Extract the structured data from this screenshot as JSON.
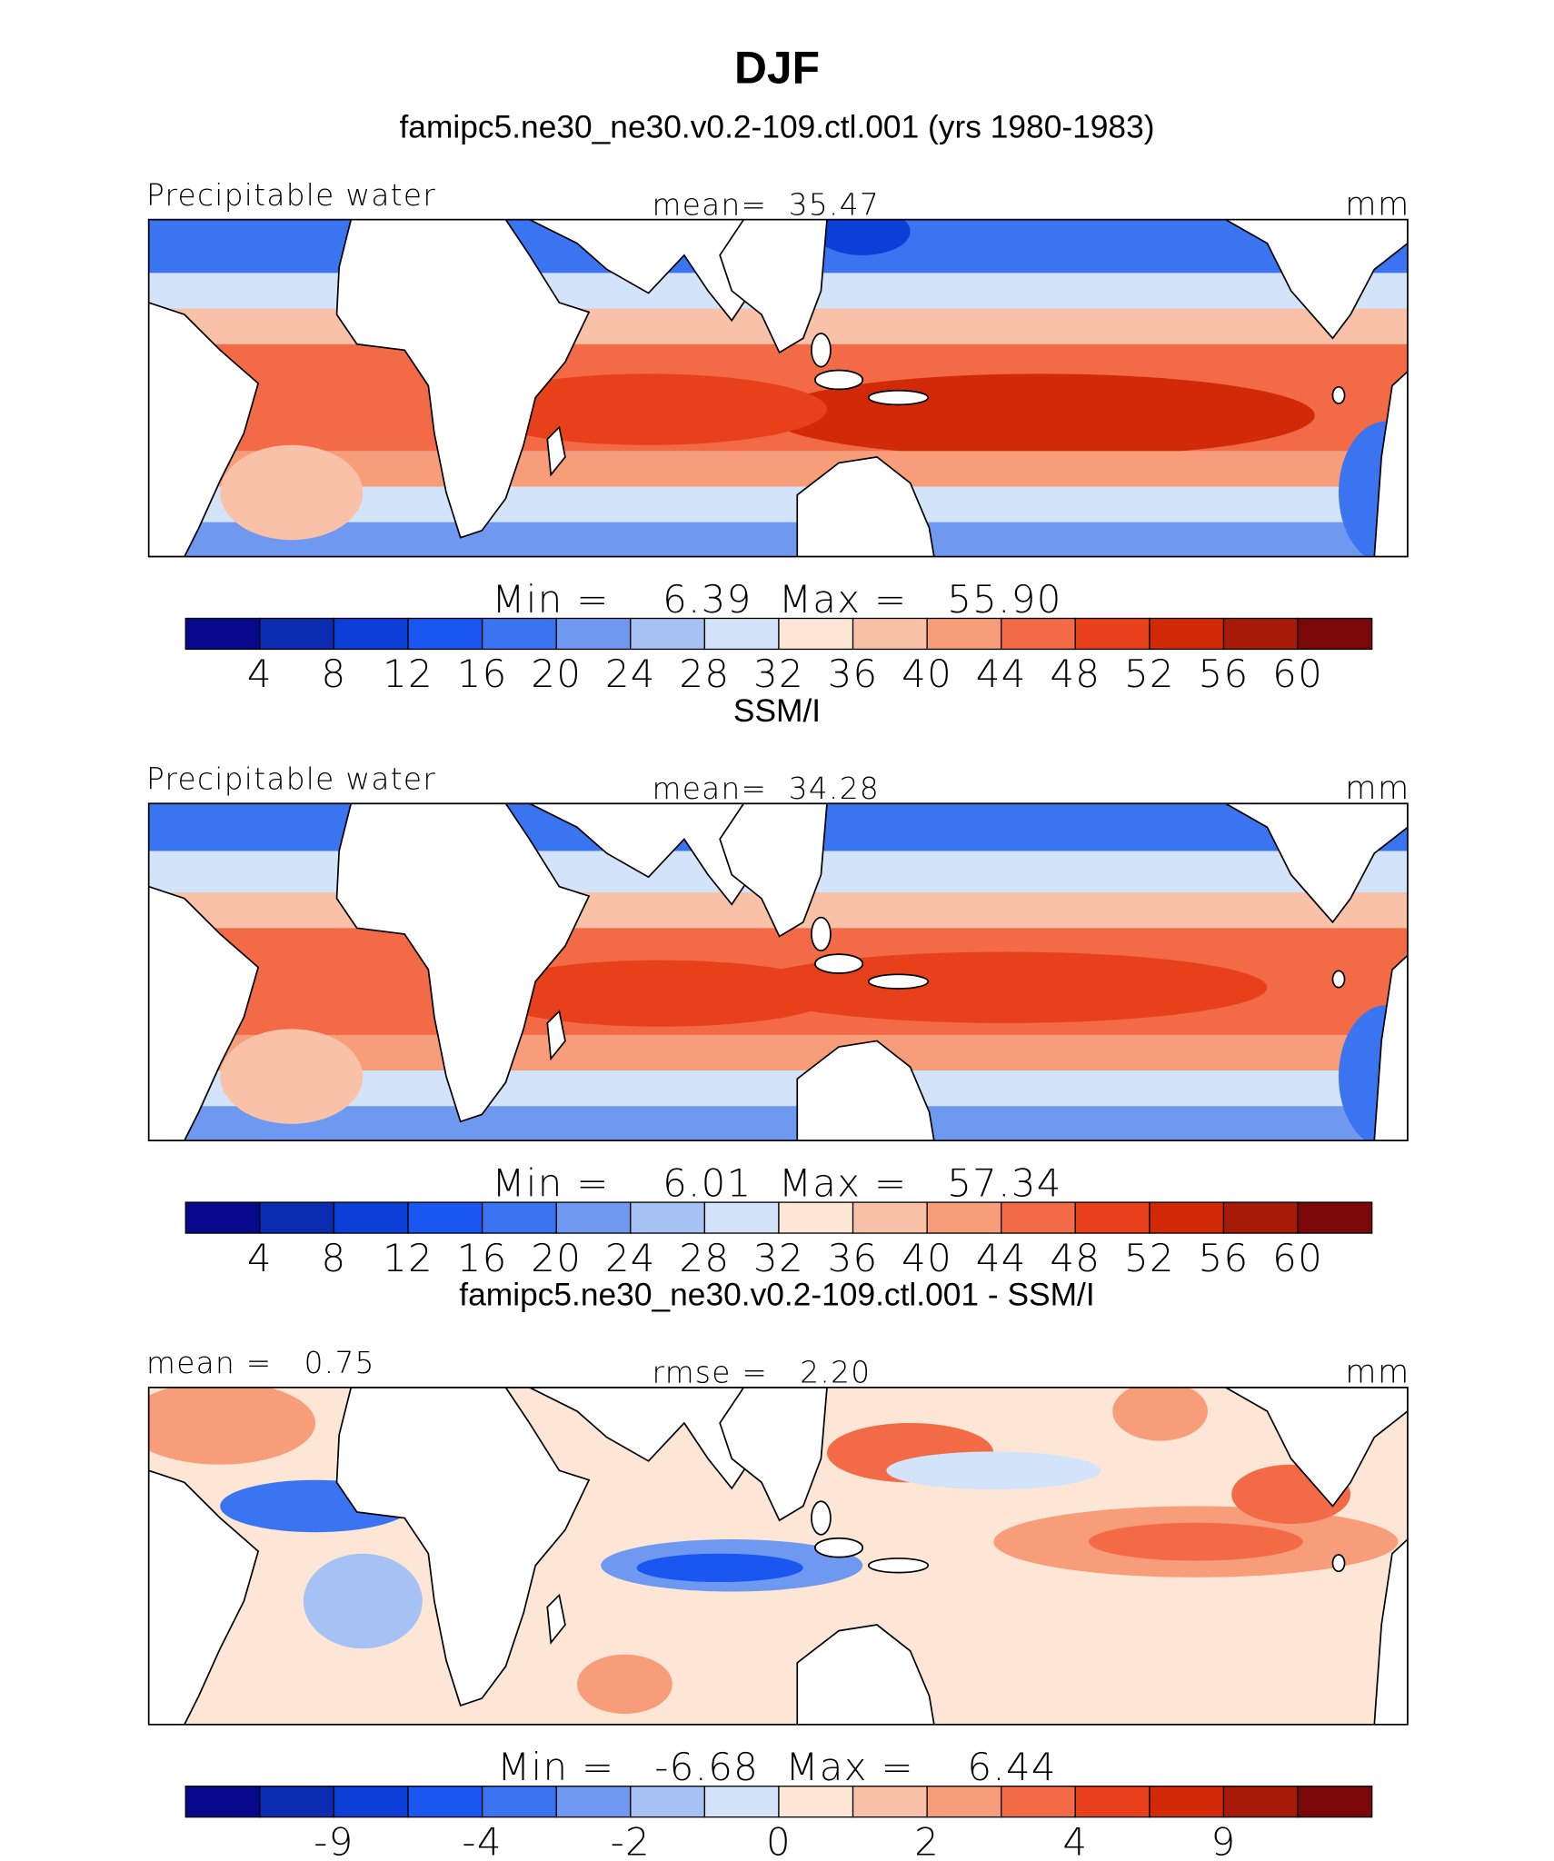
{
  "title": "DJF",
  "panels": [
    {
      "title": "famipc5.ne30_ne30.v0.2-109.ctl.001 (yrs 1980-1983)",
      "left_label": "Precipitable water",
      "center_label": "mean=  35.47",
      "units": "mm",
      "min_max": "Min =    6.39  Max =   55.90",
      "colorbar": {
        "colors": [
          "#08088c",
          "#0a2cb0",
          "#0c3fd8",
          "#1a56f0",
          "#3a74f0",
          "#6f98f0",
          "#a6c2f5",
          "#d3e4fa",
          "#fde6d6",
          "#f9c2a8",
          "#f79d7a",
          "#f26a46",
          "#e8401a",
          "#d22a08",
          "#a81a08",
          "#7a0808"
        ],
        "ticks": [
          4,
          8,
          12,
          16,
          20,
          24,
          28,
          32,
          36,
          40,
          44,
          48,
          52,
          56,
          60
        ]
      }
    },
    {
      "title": "SSM/I",
      "left_label": "Precipitable water",
      "center_label": "mean=  34.28",
      "units": "mm",
      "min_max": "Min =    6.01  Max =   57.34",
      "colorbar": {
        "colors": [
          "#08088c",
          "#0a2cb0",
          "#0c3fd8",
          "#1a56f0",
          "#3a74f0",
          "#6f98f0",
          "#a6c2f5",
          "#d3e4fa",
          "#fde6d6",
          "#f9c2a8",
          "#f79d7a",
          "#f26a46",
          "#e8401a",
          "#d22a08",
          "#a81a08",
          "#7a0808"
        ],
        "ticks": [
          4,
          8,
          12,
          16,
          20,
          24,
          28,
          32,
          36,
          40,
          44,
          48,
          52,
          56,
          60
        ]
      }
    },
    {
      "title": "famipc5.ne30_ne30.v0.2-109.ctl.001 - SSM/I",
      "left_label": "mean =   0.75",
      "center_label": "rmse =   2.20",
      "units": "mm",
      "min_max": "Min =   -6.68  Max =    6.44",
      "colorbar": {
        "colors": [
          "#08088c",
          "#0a2cb0",
          "#0c3fd8",
          "#1a56f0",
          "#3a74f0",
          "#6f98f0",
          "#a6c2f5",
          "#d3e4fa",
          "#fde6d6",
          "#f9c2a8",
          "#f79d7a",
          "#f26a46",
          "#e8401a",
          "#d22a08",
          "#a81a08",
          "#7a0808"
        ],
        "ticks": [
          null,
          -9,
          null,
          -4,
          null,
          -2,
          null,
          0,
          null,
          2,
          null,
          4,
          null,
          9,
          null
        ]
      }
    }
  ]
}
